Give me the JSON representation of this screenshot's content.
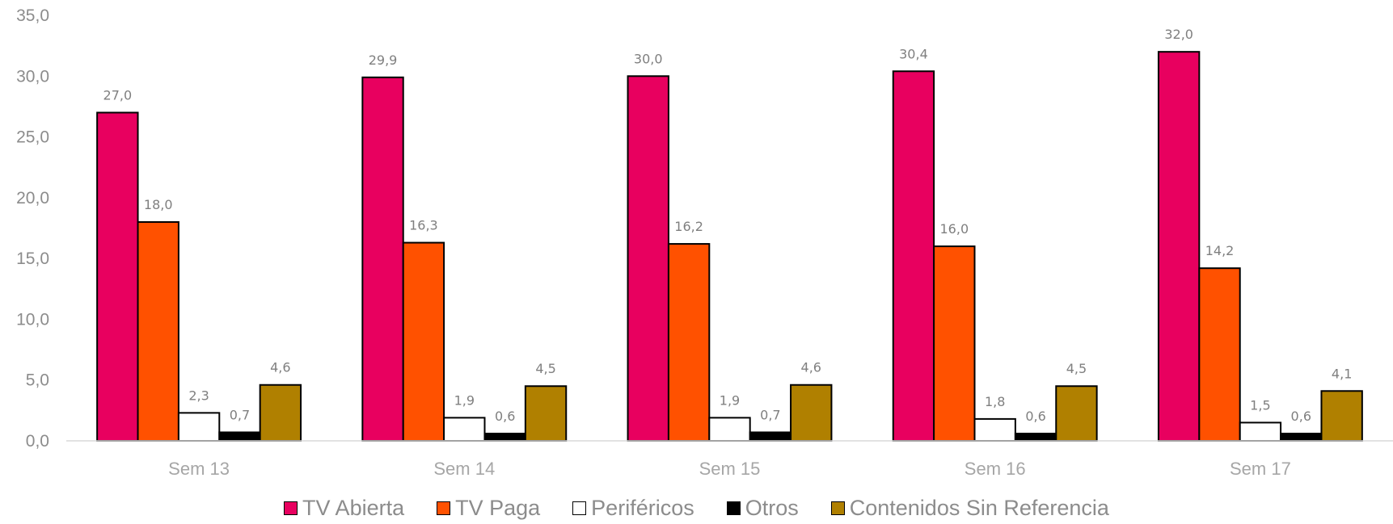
{
  "chart_data": {
    "type": "bar",
    "categories": [
      "Sem 13",
      "Sem 14",
      "Sem 15",
      "Sem 16",
      "Sem 17"
    ],
    "series": [
      {
        "name": "TV Abierta",
        "color": "#E8005F",
        "values": [
          27.0,
          29.9,
          30.0,
          30.4,
          32.0
        ],
        "labels": [
          "27,0",
          "29,9",
          "30,0",
          "30,4",
          "32,0"
        ]
      },
      {
        "name": "TV Paga",
        "color": "#FF5100",
        "values": [
          18.0,
          16.3,
          16.2,
          16.0,
          14.2
        ],
        "labels": [
          "18,0",
          "16,3",
          "16,2",
          "16,0",
          "14,2"
        ]
      },
      {
        "name": "Periféricos",
        "color": "#FFFFFF",
        "values": [
          2.3,
          1.9,
          1.9,
          1.8,
          1.5
        ],
        "labels": [
          "2,3",
          "1,9",
          "1,9",
          "1,8",
          "1,5"
        ]
      },
      {
        "name": "Otros",
        "color": "#000000",
        "values": [
          0.7,
          0.6,
          0.7,
          0.6,
          0.6
        ],
        "labels": [
          "0,7",
          "0,6",
          "0,7",
          "0,6",
          "0,6"
        ]
      },
      {
        "name": "Contenidos Sin Referencia",
        "color": "#B08000",
        "values": [
          4.6,
          4.5,
          4.6,
          4.5,
          4.1
        ],
        "labels": [
          "4,6",
          "4,5",
          "4,6",
          "4,5",
          "4,1"
        ]
      }
    ],
    "y_ticks": [
      "0,0",
      "5,0",
      "10,0",
      "15,0",
      "20,0",
      "25,0",
      "30,0",
      "35,0"
    ],
    "ylim": [
      0,
      35
    ],
    "grid": false,
    "legend_position": "bottom"
  }
}
